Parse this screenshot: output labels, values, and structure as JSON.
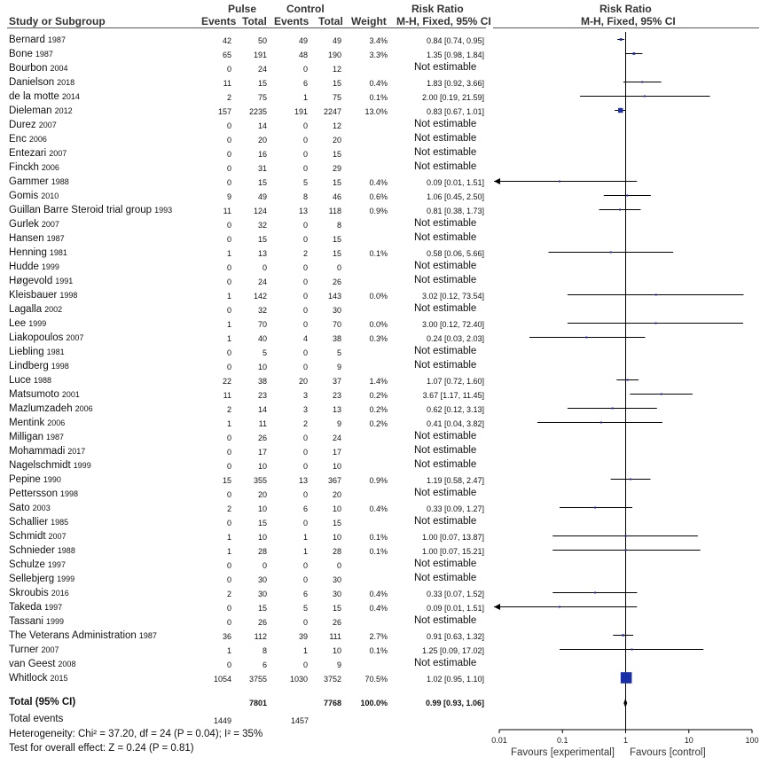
{
  "headers": {
    "study": "Study or Subgroup",
    "pulse": "Pulse",
    "control": "Control",
    "events": "Events",
    "total": "Total",
    "weight": "Weight",
    "rr": "Risk Ratio",
    "rr_method": "M-H, Fixed, 95% CI"
  },
  "summary": {
    "label": "Total (95% CI)",
    "pulse_total": "7801",
    "control_total": "7768",
    "weight": "100.0%",
    "ci_text": "0.99 [0.93, 1.06]",
    "total_events_label": "Total events",
    "pulse_events": "1449",
    "control_events": "1457",
    "heterogeneity": "Heterogeneity: Chi² = 37.20, df = 24 (P = 0.04); I² = 35%",
    "overall": "Test for overall effect: Z = 0.24 (P = 0.81)"
  },
  "axis_labels": {
    "ticks": [
      "0.01",
      "0.1",
      "1",
      "10",
      "100"
    ],
    "favours_left": "Favours [experimental]",
    "favours_right": "Favours [control]"
  },
  "colors": {
    "marker": "#1a2ea8",
    "line": "#000000"
  },
  "chart_data": {
    "type": "forest",
    "title": "Risk Ratio",
    "subtitle": "M-H, Fixed, 95% CI",
    "x_scale": "log",
    "xlim": [
      0.01,
      100
    ],
    "x_ticks": [
      0.01,
      0.1,
      1,
      10,
      100
    ],
    "reference_line": 1,
    "studies": [
      {
        "name": "Bernard",
        "year": "1987",
        "pe": "42",
        "pt": "50",
        "ce": "49",
        "ct": "49",
        "w": "3.4%",
        "ci": "0.84 [0.74, 0.95]",
        "rr": 0.84,
        "lo": 0.74,
        "hi": 0.95,
        "wv": 3.4
      },
      {
        "name": "Bone",
        "year": "1987",
        "pe": "65",
        "pt": "191",
        "ce": "48",
        "ct": "190",
        "w": "3.3%",
        "ci": "1.35 [0.98, 1.84]",
        "rr": 1.35,
        "lo": 0.98,
        "hi": 1.84,
        "wv": 3.3
      },
      {
        "name": "Bourbon",
        "year": "2004",
        "pe": "0",
        "pt": "24",
        "ce": "0",
        "ct": "12",
        "w": "",
        "ci": "Not estimable"
      },
      {
        "name": "Danielson",
        "year": "2018",
        "pe": "11",
        "pt": "15",
        "ce": "6",
        "ct": "15",
        "w": "0.4%",
        "ci": "1.83 [0.92, 3.66]",
        "rr": 1.83,
        "lo": 0.92,
        "hi": 3.66,
        "wv": 0.4
      },
      {
        "name": "de la motte",
        "year": "2014",
        "pe": "2",
        "pt": "75",
        "ce": "1",
        "ct": "75",
        "w": "0.1%",
        "ci": "2.00 [0.19, 21.59]",
        "rr": 2.0,
        "lo": 0.19,
        "hi": 21.59,
        "wv": 0.1
      },
      {
        "name": "Dieleman",
        "year": "2012",
        "pe": "157",
        "pt": "2235",
        "ce": "191",
        "ct": "2247",
        "w": "13.0%",
        "ci": "0.83 [0.67, 1.01]",
        "rr": 0.83,
        "lo": 0.67,
        "hi": 1.01,
        "wv": 13.0
      },
      {
        "name": "Durez",
        "year": "2007",
        "pe": "0",
        "pt": "14",
        "ce": "0",
        "ct": "12",
        "w": "",
        "ci": "Not estimable"
      },
      {
        "name": "Enc",
        "year": "2006",
        "pe": "0",
        "pt": "20",
        "ce": "0",
        "ct": "20",
        "w": "",
        "ci": "Not estimable"
      },
      {
        "name": "Entezari",
        "year": "2007",
        "pe": "0",
        "pt": "16",
        "ce": "0",
        "ct": "15",
        "w": "",
        "ci": "Not estimable"
      },
      {
        "name": "Finckh",
        "year": "2006",
        "pe": "0",
        "pt": "31",
        "ce": "0",
        "ct": "29",
        "w": "",
        "ci": "Not estimable"
      },
      {
        "name": "Gammer",
        "year": "1988",
        "pe": "0",
        "pt": "15",
        "ce": "5",
        "ct": "15",
        "w": "0.4%",
        "ci": "0.09 [0.01, 1.51]",
        "rr": 0.09,
        "lo": 0.01,
        "hi": 1.51,
        "wv": 0.4,
        "arrow_left": true
      },
      {
        "name": "Gomis",
        "year": "2010",
        "pe": "9",
        "pt": "49",
        "ce": "8",
        "ct": "46",
        "w": "0.6%",
        "ci": "1.06 [0.45, 2.50]",
        "rr": 1.06,
        "lo": 0.45,
        "hi": 2.5,
        "wv": 0.6
      },
      {
        "name": "Guillan Barre Steroid trial group",
        "year": "1993",
        "pe": "11",
        "pt": "124",
        "ce": "13",
        "ct": "118",
        "w": "0.9%",
        "ci": "0.81 [0.38, 1.73]",
        "rr": 0.81,
        "lo": 0.38,
        "hi": 1.73,
        "wv": 0.9
      },
      {
        "name": "Gurlek",
        "year": "2007",
        "pe": "0",
        "pt": "32",
        "ce": "0",
        "ct": "8",
        "w": "",
        "ci": "Not estimable"
      },
      {
        "name": "Hansen",
        "year": "1987",
        "pe": "0",
        "pt": "15",
        "ce": "0",
        "ct": "15",
        "w": "",
        "ci": "Not estimable"
      },
      {
        "name": "Henning",
        "year": "1981",
        "pe": "1",
        "pt": "13",
        "ce": "2",
        "ct": "15",
        "w": "0.1%",
        "ci": "0.58 [0.06, 5.66]",
        "rr": 0.58,
        "lo": 0.06,
        "hi": 5.66,
        "wv": 0.1
      },
      {
        "name": "Hudde",
        "year": "1999",
        "pe": "0",
        "pt": "0",
        "ce": "0",
        "ct": "0",
        "w": "",
        "ci": "Not estimable"
      },
      {
        "name": "Høgevold",
        "year": "1991",
        "pe": "0",
        "pt": "24",
        "ce": "0",
        "ct": "26",
        "w": "",
        "ci": "Not estimable"
      },
      {
        "name": "Kleisbauer",
        "year": "1998",
        "pe": "1",
        "pt": "142",
        "ce": "0",
        "ct": "143",
        "w": "0.0%",
        "ci": "3.02 [0.12, 73.54]",
        "rr": 3.02,
        "lo": 0.12,
        "hi": 73.54,
        "wv": 0.0
      },
      {
        "name": "Lagalla",
        "year": "2002",
        "pe": "0",
        "pt": "32",
        "ce": "0",
        "ct": "30",
        "w": "",
        "ci": "Not estimable"
      },
      {
        "name": "Lee",
        "year": "1999",
        "pe": "1",
        "pt": "70",
        "ce": "0",
        "ct": "70",
        "w": "0.0%",
        "ci": "3.00 [0.12, 72.40]",
        "rr": 3.0,
        "lo": 0.12,
        "hi": 72.4,
        "wv": 0.0
      },
      {
        "name": "Liakopoulos",
        "year": "2007",
        "pe": "1",
        "pt": "40",
        "ce": "4",
        "ct": "38",
        "w": "0.3%",
        "ci": "0.24 [0.03, 2.03]",
        "rr": 0.24,
        "lo": 0.03,
        "hi": 2.03,
        "wv": 0.3
      },
      {
        "name": "Liebling",
        "year": "1981",
        "pe": "0",
        "pt": "5",
        "ce": "0",
        "ct": "5",
        "w": "",
        "ci": "Not estimable"
      },
      {
        "name": "Lindberg",
        "year": "1998",
        "pe": "0",
        "pt": "10",
        "ce": "0",
        "ct": "9",
        "w": "",
        "ci": "Not estimable"
      },
      {
        "name": "Luce",
        "year": "1988",
        "pe": "22",
        "pt": "38",
        "ce": "20",
        "ct": "37",
        "w": "1.4%",
        "ci": "1.07 [0.72, 1.60]",
        "rr": 1.07,
        "lo": 0.72,
        "hi": 1.6,
        "wv": 1.4
      },
      {
        "name": "Matsumoto",
        "year": "2001",
        "pe": "11",
        "pt": "23",
        "ce": "3",
        "ct": "23",
        "w": "0.2%",
        "ci": "3.67 [1.17, 11.45]",
        "rr": 3.67,
        "lo": 1.17,
        "hi": 11.45,
        "wv": 0.2
      },
      {
        "name": "Mazlumzadeh",
        "year": "2006",
        "pe": "2",
        "pt": "14",
        "ce": "3",
        "ct": "13",
        "w": "0.2%",
        "ci": "0.62 [0.12, 3.13]",
        "rr": 0.62,
        "lo": 0.12,
        "hi": 3.13,
        "wv": 0.2
      },
      {
        "name": "Mentink",
        "year": "2006",
        "pe": "1",
        "pt": "11",
        "ce": "2",
        "ct": "9",
        "w": "0.2%",
        "ci": "0.41 [0.04, 3.82]",
        "rr": 0.41,
        "lo": 0.04,
        "hi": 3.82,
        "wv": 0.2
      },
      {
        "name": "Milligan",
        "year": "1987",
        "pe": "0",
        "pt": "26",
        "ce": "0",
        "ct": "24",
        "w": "",
        "ci": "Not estimable"
      },
      {
        "name": "Mohammadi",
        "year": "2017",
        "pe": "0",
        "pt": "17",
        "ce": "0",
        "ct": "17",
        "w": "",
        "ci": "Not estimable"
      },
      {
        "name": "Nagelschmidt",
        "year": "1999",
        "pe": "0",
        "pt": "10",
        "ce": "0",
        "ct": "10",
        "w": "",
        "ci": "Not estimable"
      },
      {
        "name": "Pepine",
        "year": "1990",
        "pe": "15",
        "pt": "355",
        "ce": "13",
        "ct": "367",
        "w": "0.9%",
        "ci": "1.19 [0.58, 2.47]",
        "rr": 1.19,
        "lo": 0.58,
        "hi": 2.47,
        "wv": 0.9
      },
      {
        "name": "Pettersson",
        "year": "1998",
        "pe": "0",
        "pt": "20",
        "ce": "0",
        "ct": "20",
        "w": "",
        "ci": "Not estimable"
      },
      {
        "name": "Sato",
        "year": "2003",
        "pe": "2",
        "pt": "10",
        "ce": "6",
        "ct": "10",
        "w": "0.4%",
        "ci": "0.33 [0.09, 1.27]",
        "rr": 0.33,
        "lo": 0.09,
        "hi": 1.27,
        "wv": 0.4
      },
      {
        "name": "Schallier",
        "year": "1985",
        "pe": "0",
        "pt": "15",
        "ce": "0",
        "ct": "15",
        "w": "",
        "ci": "Not estimable"
      },
      {
        "name": "Schmidt",
        "year": "2007",
        "pe": "1",
        "pt": "10",
        "ce": "1",
        "ct": "10",
        "w": "0.1%",
        "ci": "1.00 [0.07, 13.87]",
        "rr": 1.0,
        "lo": 0.07,
        "hi": 13.87,
        "wv": 0.1
      },
      {
        "name": "Schnieder",
        "year": "1988",
        "pe": "1",
        "pt": "28",
        "ce": "1",
        "ct": "28",
        "w": "0.1%",
        "ci": "1.00 [0.07, 15.21]",
        "rr": 1.0,
        "lo": 0.07,
        "hi": 15.21,
        "wv": 0.1
      },
      {
        "name": "Schulze",
        "year": "1997",
        "pe": "0",
        "pt": "0",
        "ce": "0",
        "ct": "0",
        "w": "",
        "ci": "Not estimable"
      },
      {
        "name": "Sellebjerg",
        "year": "1999",
        "pe": "0",
        "pt": "30",
        "ce": "0",
        "ct": "30",
        "w": "",
        "ci": "Not estimable"
      },
      {
        "name": "Skroubis",
        "year": "2016",
        "pe": "2",
        "pt": "30",
        "ce": "6",
        "ct": "30",
        "w": "0.4%",
        "ci": "0.33 [0.07, 1.52]",
        "rr": 0.33,
        "lo": 0.07,
        "hi": 1.52,
        "wv": 0.4
      },
      {
        "name": "Takeda",
        "year": "1997",
        "pe": "0",
        "pt": "15",
        "ce": "5",
        "ct": "15",
        "w": "0.4%",
        "ci": "0.09 [0.01, 1.51]",
        "rr": 0.09,
        "lo": 0.01,
        "hi": 1.51,
        "wv": 0.4,
        "arrow_left": true
      },
      {
        "name": "Tassani",
        "year": "1999",
        "pe": "0",
        "pt": "26",
        "ce": "0",
        "ct": "26",
        "w": "",
        "ci": "Not estimable"
      },
      {
        "name": "The Veterans Administration",
        "year": "1987",
        "pe": "36",
        "pt": "112",
        "ce": "39",
        "ct": "111",
        "w": "2.7%",
        "ci": "0.91 [0.63, 1.32]",
        "rr": 0.91,
        "lo": 0.63,
        "hi": 1.32,
        "wv": 2.7
      },
      {
        "name": "Turner",
        "year": "2007",
        "pe": "1",
        "pt": "8",
        "ce": "1",
        "ct": "10",
        "w": "0.1%",
        "ci": "1.25 [0.09, 17.02]",
        "rr": 1.25,
        "lo": 0.09,
        "hi": 17.02,
        "wv": 0.1
      },
      {
        "name": "van Geest",
        "year": "2008",
        "pe": "0",
        "pt": "6",
        "ce": "0",
        "ct": "9",
        "w": "",
        "ci": "Not estimable"
      },
      {
        "name": "Whitlock",
        "year": "2015",
        "pe": "1054",
        "pt": "3755",
        "ce": "1030",
        "ct": "3752",
        "w": "70.5%",
        "ci": "1.02 [0.95, 1.10]",
        "rr": 1.02,
        "lo": 0.95,
        "hi": 1.1,
        "wv": 70.5
      }
    ],
    "pooled": {
      "rr": 0.99,
      "lo": 0.93,
      "hi": 1.06
    }
  }
}
